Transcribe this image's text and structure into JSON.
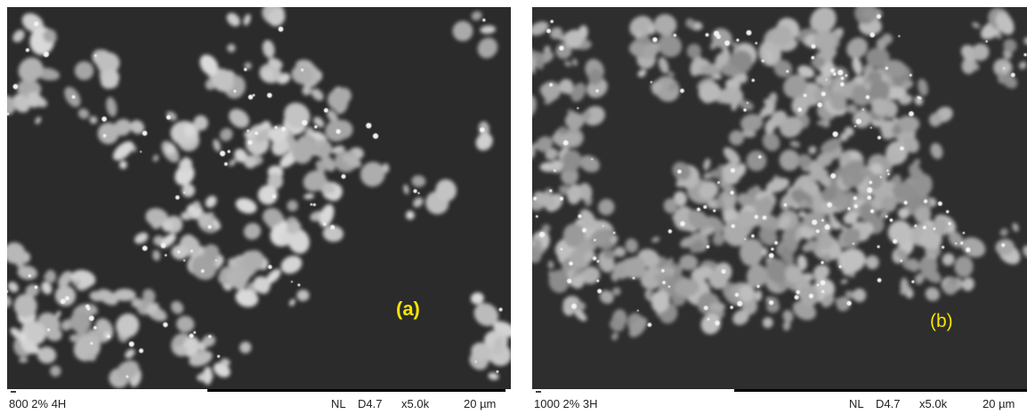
{
  "panels": [
    {
      "label": "(a)",
      "info": {
        "sample": "800 2% 4H",
        "mode": "NL",
        "distance": "D4.7",
        "magnification": "x5.0k",
        "scale": "20 µm"
      }
    },
    {
      "label": "(b)",
      "info": {
        "sample": "1000 2% 3H",
        "mode": "NL",
        "distance": "D4.7",
        "magnification": "x5.0k",
        "scale": "20 µm"
      }
    }
  ]
}
